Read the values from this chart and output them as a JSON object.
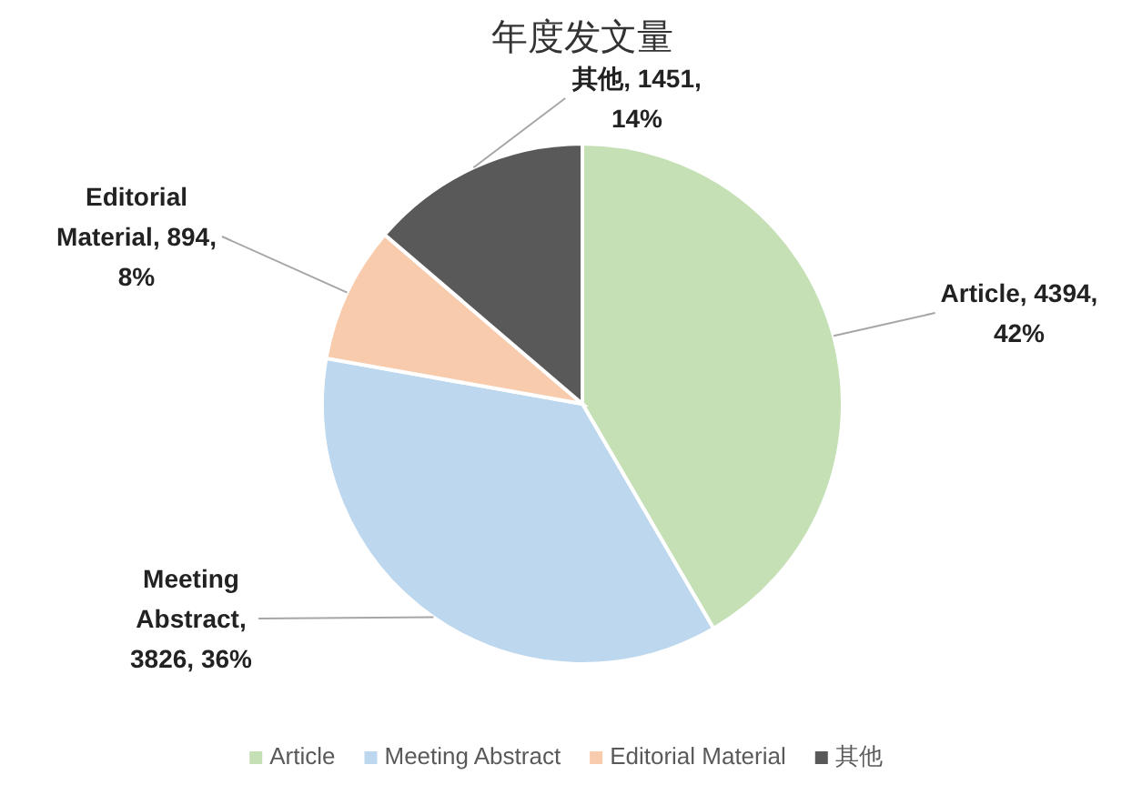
{
  "chart_data": {
    "type": "pie",
    "title": "年度发文量",
    "categories": [
      "Article",
      "Meeting Abstract",
      "Editorial Material",
      "其他"
    ],
    "values": [
      4394,
      3826,
      894,
      1451
    ],
    "colors": [
      "#c5e0b4",
      "#bdd7ee",
      "#f8cbad",
      "#595959"
    ],
    "value_labels": [
      "Article, 4394, 42%",
      "Meeting Abstract, 3826, 36%",
      "Editorial Material, 894, 8%",
      "其他, 1451, 14%"
    ],
    "legend": "bottom"
  }
}
